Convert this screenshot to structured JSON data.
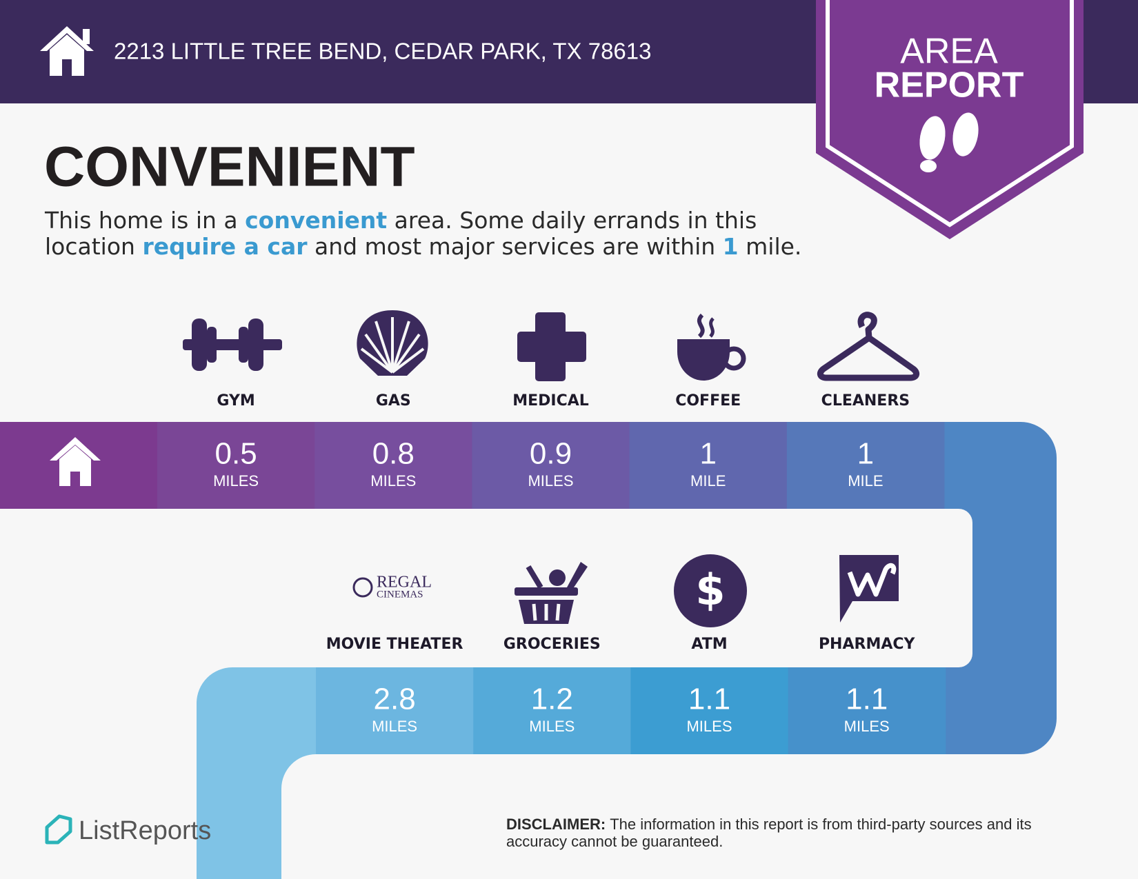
{
  "header": {
    "address": "2213 LITTLE TREE BEND, CEDAR PARK, TX 78613",
    "badge": [
      "AREA",
      "REPORT"
    ]
  },
  "headline": "CONVENIENT",
  "summary": {
    "accent_color": "#3a9ad0",
    "lines": [
      [
        {
          "text": "This home is in a "
        },
        {
          "text": "convenient",
          "accent": true
        },
        {
          "text": " area. Some daily errands in this"
        }
      ],
      [
        {
          "text": "location "
        },
        {
          "text": "require a car",
          "accent": true
        },
        {
          "text": " and most major services are within "
        },
        {
          "text": "1",
          "accent": true
        },
        {
          "text": " mile."
        }
      ]
    ]
  },
  "home_color": "#7c3a8f",
  "rows": [
    [
      {
        "label": "GYM",
        "distance": 0.5,
        "unit": "MILES",
        "color": "#7a4696"
      },
      {
        "label": "GAS",
        "distance": 0.8,
        "unit": "MILES",
        "color": "#774e9e"
      },
      {
        "label": "MEDICAL",
        "distance": 0.9,
        "unit": "MILES",
        "color": "#6c5aa6"
      },
      {
        "label": "COFFEE",
        "distance": 1,
        "unit": "MILE",
        "color": "#6067ae"
      },
      {
        "label": "CLEANERS",
        "distance": 1,
        "unit": "MILE",
        "color": "#5678b9"
      }
    ],
    [
      {
        "label": "MOVIE THEATER",
        "distance": 2.8,
        "unit": "MILES",
        "color": "#6cb6e0",
        "logo": [
          "REGAL",
          "CINEMAS"
        ]
      },
      {
        "label": "GROCERIES",
        "distance": 1.2,
        "unit": "MILES",
        "color": "#55aad9"
      },
      {
        "label": "ATM",
        "distance": 1.1,
        "unit": "MILES",
        "color": "#3c9dd2",
        "symbol": "$"
      },
      {
        "label": "PHARMACY",
        "distance": 1.1,
        "unit": "MILES",
        "color": "#4691cb"
      }
    ]
  ],
  "footer": {
    "brand": "ListReports",
    "disclaimer": {
      "label": "DISCLAIMER:",
      "lines": [
        "The information in this report is from third-party sources and its",
        "accuracy cannot be guaranteed."
      ]
    }
  }
}
